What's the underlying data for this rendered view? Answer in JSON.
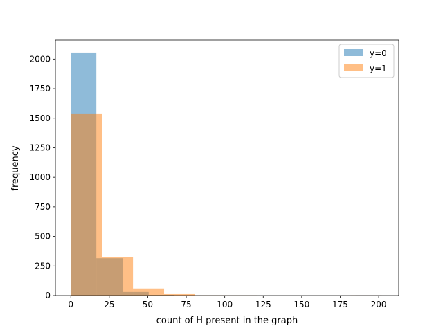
{
  "chart_data": {
    "type": "bar",
    "subtype": "histogram-overlay",
    "xlabel": "count of H present in the graph",
    "ylabel": "frequency",
    "xlim": [
      -10,
      213
    ],
    "ylim": [
      0,
      2160
    ],
    "xticks": [
      0,
      25,
      50,
      75,
      100,
      125,
      150,
      175,
      200
    ],
    "yticks": [
      0,
      250,
      500,
      750,
      1000,
      1250,
      1500,
      1750,
      2000
    ],
    "grid": false,
    "legend_position": "upper right",
    "series": [
      {
        "name": "y=0",
        "color": "#1f77b4",
        "opacity": 0.5,
        "bins": [
          {
            "x0": 0,
            "x1": 16.6,
            "count": 2055
          },
          {
            "x0": 16.6,
            "x1": 33.8,
            "count": 315
          },
          {
            "x0": 33.8,
            "x1": 50.6,
            "count": 30
          },
          {
            "x0": 50.6,
            "x1": 67.4,
            "count": 5
          },
          {
            "x0": 67.4,
            "x1": 84.2,
            "count": 2
          },
          {
            "x0": 84.2,
            "x1": 101.0,
            "count": 1
          },
          {
            "x0": 101.0,
            "x1": 117.8,
            "count": 0
          },
          {
            "x0": 117.8,
            "x1": 134.6,
            "count": 0
          },
          {
            "x0": 134.6,
            "x1": 151.4,
            "count": 0
          },
          {
            "x0": 151.4,
            "x1": 168.2,
            "count": 0
          },
          {
            "x0": 168.2,
            "x1": 185.0,
            "count": 0
          },
          {
            "x0": 185.0,
            "x1": 201.8,
            "count": 1
          }
        ]
      },
      {
        "name": "y=1",
        "color": "#ff7f0e",
        "opacity": 0.5,
        "bins": [
          {
            "x0": 0,
            "x1": 20.2,
            "count": 1540
          },
          {
            "x0": 20.2,
            "x1": 40.4,
            "count": 325
          },
          {
            "x0": 40.4,
            "x1": 60.6,
            "count": 60
          },
          {
            "x0": 60.6,
            "x1": 80.8,
            "count": 12
          },
          {
            "x0": 80.8,
            "x1": 101.0,
            "count": 2
          },
          {
            "x0": 101.0,
            "x1": 121.2,
            "count": 1
          },
          {
            "x0": 121.2,
            "x1": 141.4,
            "count": 0
          },
          {
            "x0": 141.4,
            "x1": 161.6,
            "count": 0
          },
          {
            "x0": 161.6,
            "x1": 181.8,
            "count": 0
          },
          {
            "x0": 181.8,
            "x1": 202.0,
            "count": 1
          }
        ]
      }
    ]
  }
}
